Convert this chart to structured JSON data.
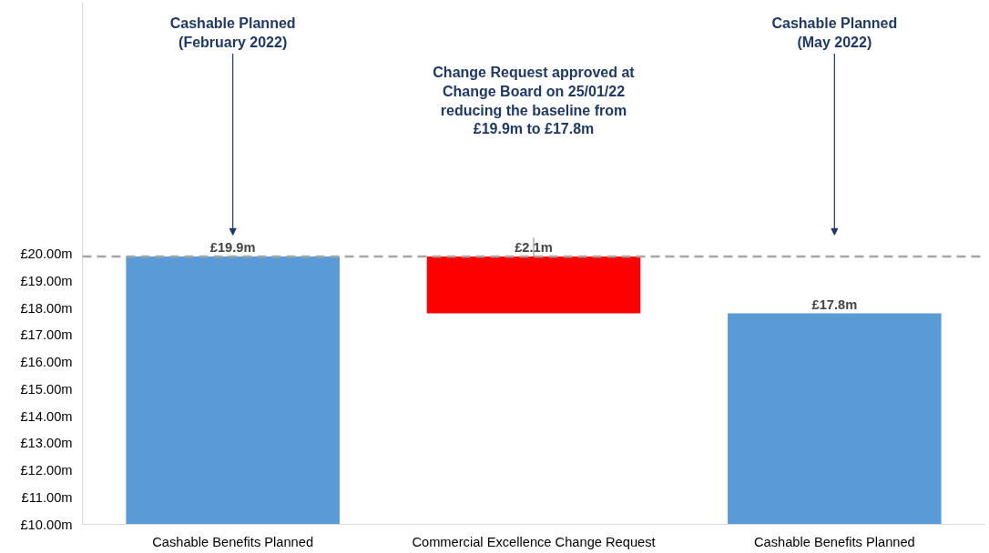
{
  "chart_data": {
    "type": "bar",
    "categories": [
      "Cashable Benefits Planned",
      "Commercial Excellence Change Request",
      "Cashable Benefits Planned"
    ],
    "values": [
      19.9,
      2.1,
      17.8
    ],
    "base": [
      null,
      17.8,
      null
    ],
    "colors": [
      "#5b9bd5",
      "#ff0000",
      "#5b9bd5"
    ],
    "value_labels": [
      "£19.9m",
      "£2.1m",
      "£17.8m"
    ],
    "ylim": [
      10,
      29.3
    ],
    "yticks": [
      {
        "value": 10,
        "label": "£10.00m"
      },
      {
        "value": 11,
        "label": "£11.00m"
      },
      {
        "value": 12,
        "label": "£12.00m"
      },
      {
        "value": 13,
        "label": "£13.00m"
      },
      {
        "value": 14,
        "label": "£14.00m"
      },
      {
        "value": 15,
        "label": "£15.00m"
      },
      {
        "value": 16,
        "label": "£16.00m"
      },
      {
        "value": 17,
        "label": "£17.00m"
      },
      {
        "value": 18,
        "label": "£18.00m"
      },
      {
        "value": 19,
        "label": "£19.00m"
      },
      {
        "value": 20,
        "label": "£20.00m"
      }
    ],
    "ref_lines": [
      {
        "axis": "y",
        "value": 19.9,
        "color": "#a6a6a6",
        "line_style": "dashed"
      }
    ],
    "annotations": [
      "Cashable Planned (February 2022)",
      "Change Request approved at Change Board on 25/01/22 reducing the baseline from £19.9m to £17.8m",
      "Cashable Planned (May 2022)"
    ],
    "grid": false,
    "legend": false
  }
}
